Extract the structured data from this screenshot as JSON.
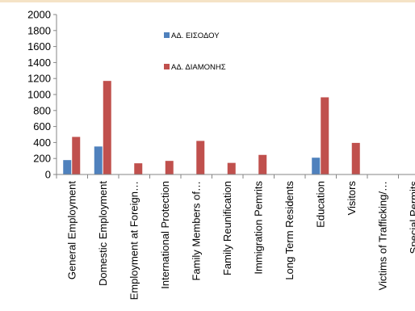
{
  "chart_data": {
    "type": "bar",
    "title": "",
    "xlabel": "",
    "ylabel": "",
    "ylim": [
      0,
      2000
    ],
    "yticks": [
      0,
      200,
      400,
      600,
      800,
      1000,
      1200,
      1400,
      1600,
      1800,
      2000
    ],
    "grid": false,
    "legend_position": "top-center",
    "categories": [
      "General Employment",
      "Domestic Employment",
      "Employment at Foreign…",
      "International Protection",
      "Family Members of…",
      "Family Reunification",
      "Immigration Pemrits",
      "Long Term Residents",
      "Education",
      "Visitors",
      "Victims of Trafficking/…",
      "Special Permits"
    ],
    "series": [
      {
        "name": "ΑΔ. ΕΙΣΟΔΟΥ",
        "color": "#4f81bd",
        "values": [
          180,
          350,
          0,
          0,
          0,
          0,
          0,
          0,
          210,
          0,
          0,
          0
        ]
      },
      {
        "name": "ΑΔ. ΔΙΑΜΟΝΗΣ",
        "color": "#c0504d",
        "values": [
          470,
          1170,
          140,
          170,
          420,
          145,
          245,
          0,
          965,
          395,
          0,
          0
        ]
      }
    ]
  }
}
